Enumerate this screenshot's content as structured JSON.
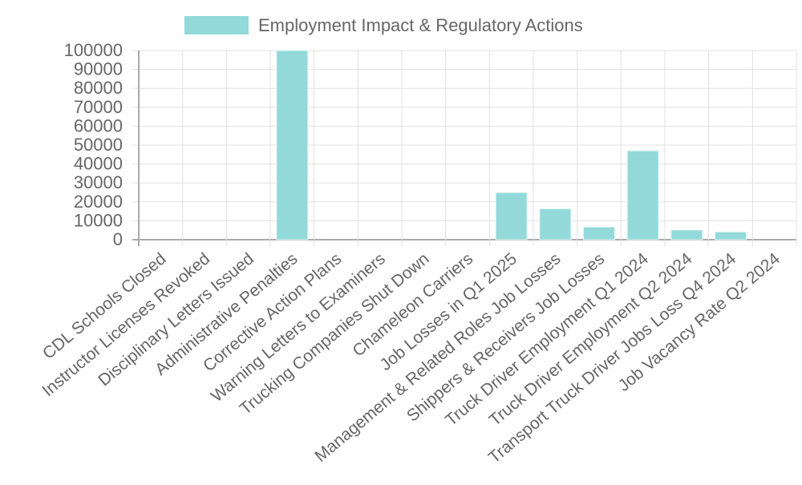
{
  "chart_data": {
    "type": "bar",
    "legend": {
      "label": "Employment Impact & Regulatory Actions",
      "position": "top"
    },
    "categories": [
      "CDL Schools Closed",
      "Instructor Licenses Revoked",
      "Disciplinary Letters Issued",
      "Administrative Penalties",
      "Corrective Action Plans",
      "Warning Letters to Examiners",
      "Trucking Companies Shut Down",
      "Chameleon Carriers",
      "Job Losses in Q1 2025",
      "Management & Related Roles Job Losses",
      "Shippers & Receivers Job Losses",
      "Truck Driver Employment Q1 2024",
      "Truck Driver Employment Q2 2024",
      "Transport Truck Driver Jobs Loss Q4 2024",
      "Job Vacancy Rate Q2 2024"
    ],
    "values": [
      0,
      0,
      0,
      100000,
      0,
      0,
      0,
      0,
      24900,
      16300,
      6700,
      47000,
      5100,
      4100,
      0
    ],
    "ylim": [
      0,
      100000
    ],
    "yticks": [
      0,
      10000,
      20000,
      30000,
      40000,
      50000,
      60000,
      70000,
      80000,
      90000,
      100000
    ],
    "grid": true,
    "colors": {
      "bar_fill": "#93d9d9",
      "bar_border": "#e6f6f6",
      "grid": "#e0e0e0",
      "axis": "#aaaaaa"
    }
  }
}
